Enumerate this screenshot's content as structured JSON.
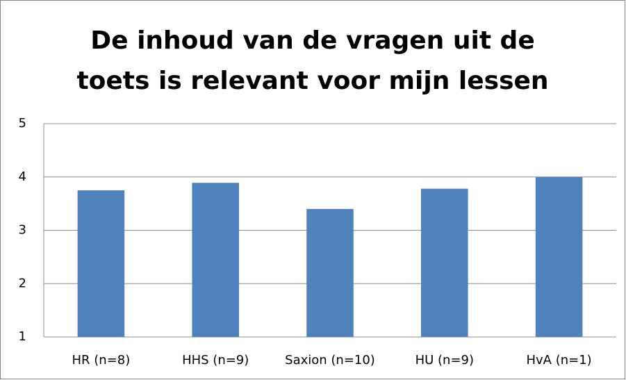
{
  "chart_data": {
    "type": "bar",
    "title": [
      "De inhoud van de vragen uit de",
      "toets is relevant voor mijn lessen"
    ],
    "categories": [
      "HR (n=8)",
      "HHS (n=9)",
      "Saxion (n=10)",
      "HU (n=9)",
      "HvA (n=1)"
    ],
    "values": [
      3.75,
      3.89,
      3.4,
      3.78,
      4
    ],
    "color": "#4f81bd",
    "ylim": [
      1,
      5
    ],
    "yticks": [
      1,
      2,
      3,
      4,
      5
    ],
    "grid": true
  }
}
